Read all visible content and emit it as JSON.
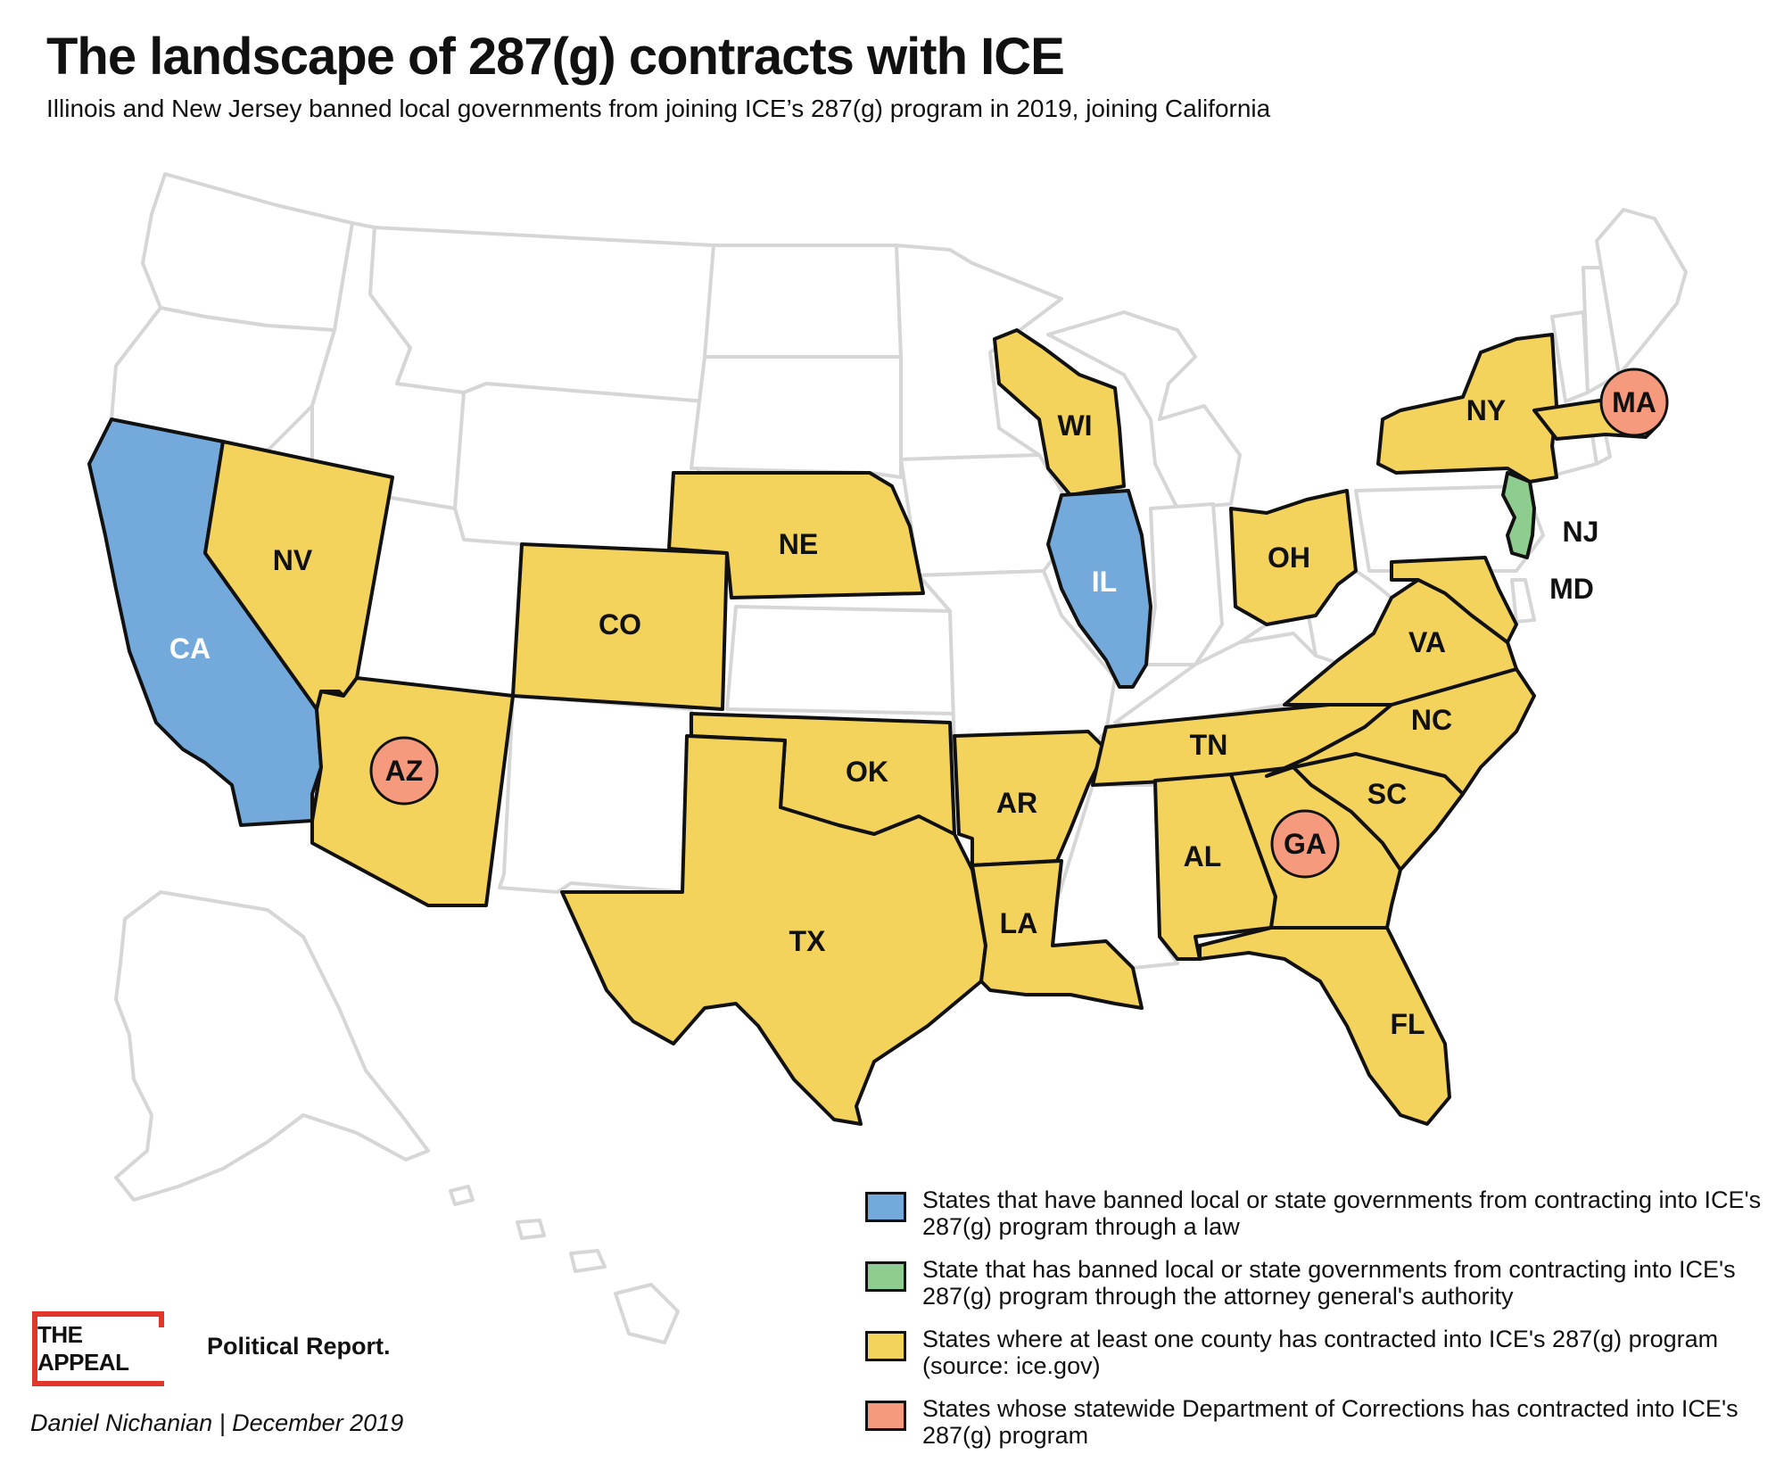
{
  "title": "The landscape of 287(g) contracts with ICE",
  "subtitle": "Illinois and New Jersey banned local governments from joining ICE’s 287(g) program in 2019, joining California",
  "colors": {
    "banned_law": "#73aadb",
    "banned_ag": "#8fcc8f",
    "county_contract": "#f3d35b",
    "doc_contract": "#f59a7c",
    "no_data": "#ffffff",
    "border": "#111111",
    "context_border": "#d6d6d6",
    "logo_red": "#e2362b"
  },
  "states": [
    {
      "abbr": "CA",
      "category": "banned_law"
    },
    {
      "abbr": "IL",
      "category": "banned_law"
    },
    {
      "abbr": "NJ",
      "category": "banned_ag"
    },
    {
      "abbr": "NV",
      "category": "county_contract"
    },
    {
      "abbr": "AZ",
      "category": "county_contract",
      "doc_contract": true
    },
    {
      "abbr": "CO",
      "category": "county_contract"
    },
    {
      "abbr": "NE",
      "category": "county_contract"
    },
    {
      "abbr": "WI",
      "category": "county_contract"
    },
    {
      "abbr": "OH",
      "category": "county_contract"
    },
    {
      "abbr": "NY",
      "category": "county_contract"
    },
    {
      "abbr": "MA",
      "category": "county_contract",
      "doc_contract": true
    },
    {
      "abbr": "MD",
      "category": "county_contract"
    },
    {
      "abbr": "VA",
      "category": "county_contract"
    },
    {
      "abbr": "NC",
      "category": "county_contract"
    },
    {
      "abbr": "TN",
      "category": "county_contract"
    },
    {
      "abbr": "OK",
      "category": "county_contract"
    },
    {
      "abbr": "AR",
      "category": "county_contract"
    },
    {
      "abbr": "TX",
      "category": "county_contract"
    },
    {
      "abbr": "LA",
      "category": "county_contract"
    },
    {
      "abbr": "AL",
      "category": "county_contract"
    },
    {
      "abbr": "GA",
      "category": "county_contract",
      "doc_contract": true
    },
    {
      "abbr": "SC",
      "category": "county_contract"
    },
    {
      "abbr": "FL",
      "category": "county_contract"
    }
  ],
  "legend": [
    {
      "category": "banned_law",
      "text": "States that have banned local or state governments from contracting into ICE's 287(g) program through a law"
    },
    {
      "category": "banned_ag",
      "text": "State that has banned local or state governments from contracting into ICE's 287(g) program through the attorney general's authority"
    },
    {
      "category": "county_contract",
      "text": "States where at least one county has contracted into ICE's 287(g) program (source: ice.gov)"
    },
    {
      "category": "doc_contract",
      "text": "States whose statewide Department of Corrections has contracted into ICE's 287(g) program"
    }
  ],
  "logo": {
    "name": "THE APPEAL",
    "tagline": "Political Report."
  },
  "credit": "Daniel Nichanian | December 2019"
}
